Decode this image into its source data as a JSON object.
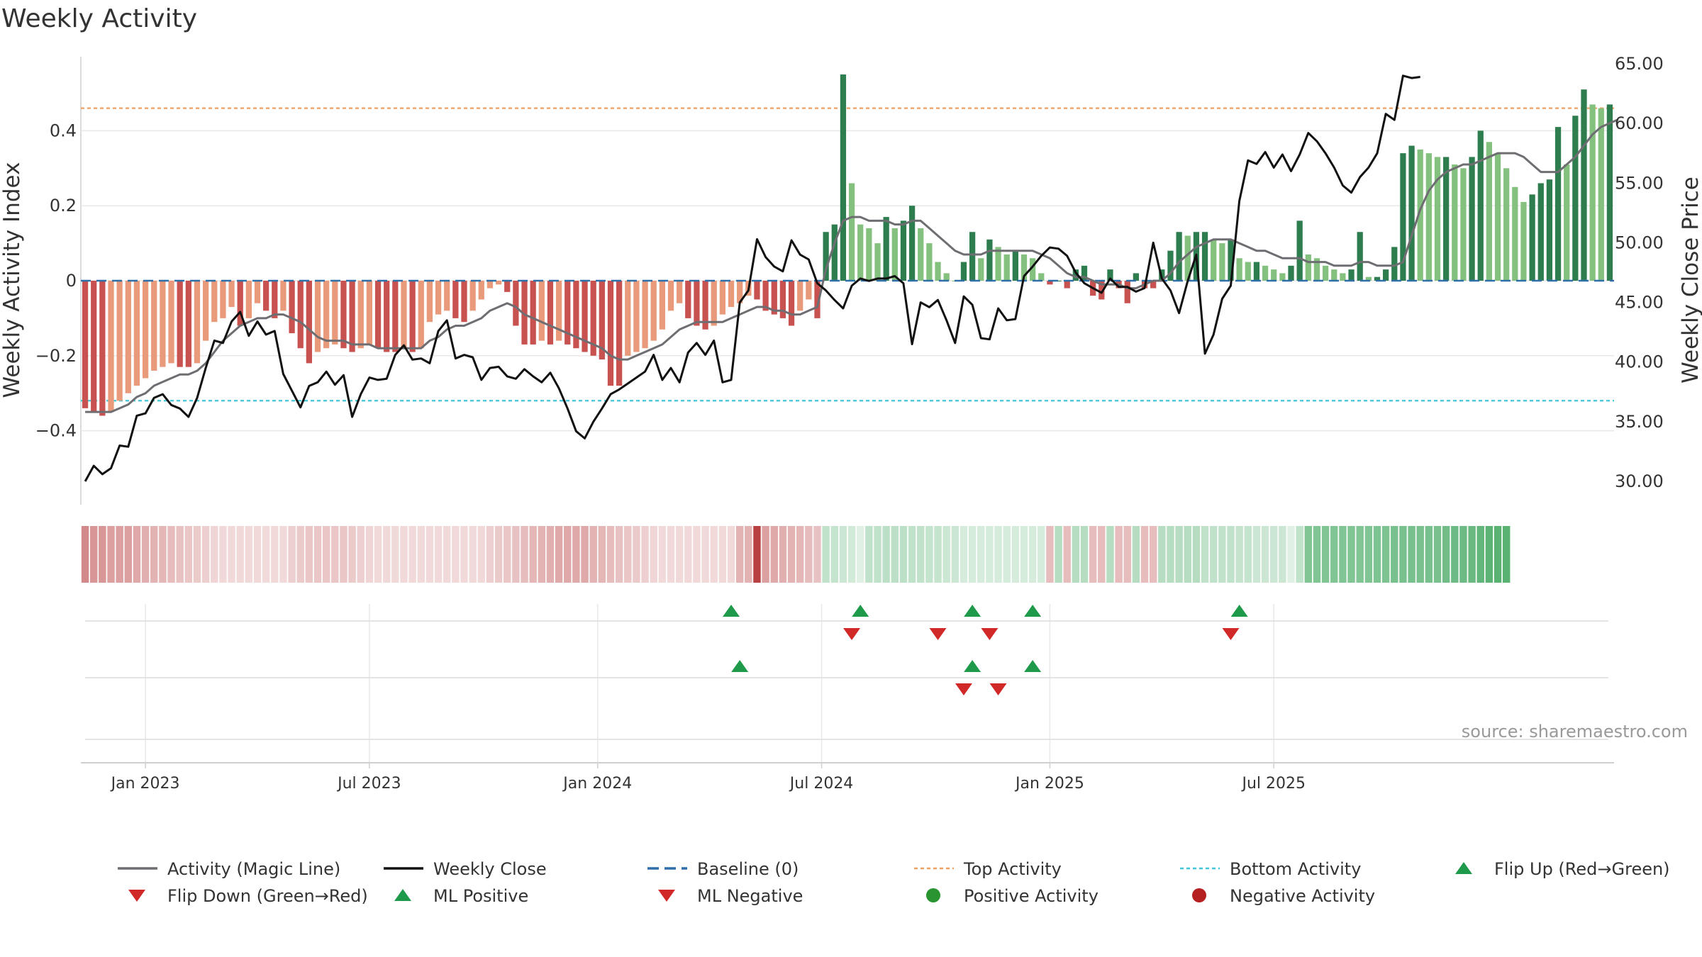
{
  "chart_data": {
    "type": "bar",
    "title": "Weekly Activity",
    "ylabel_left": "Weekly Activity Index",
    "ylabel_right": "Weekly Close Price",
    "source": "source: sharemaestro.com",
    "left_ticks": [
      {
        "value": 0.4,
        "label": "0.4"
      },
      {
        "value": 0.2,
        "label": "0.2"
      },
      {
        "value": 0,
        "label": "0"
      },
      {
        "value": -0.2,
        "label": "−0.2"
      },
      {
        "value": -0.4,
        "label": "−0.4"
      }
    ],
    "right_ticks": [
      {
        "value": 65,
        "label": "65.00"
      },
      {
        "value": 60,
        "label": "60.00"
      },
      {
        "value": 55,
        "label": "55.00"
      },
      {
        "value": 50,
        "label": "50.00"
      },
      {
        "value": 45,
        "label": "45.00"
      },
      {
        "value": 40,
        "label": "40.00"
      },
      {
        "value": 35,
        "label": "35.00"
      },
      {
        "value": 30,
        "label": "30.00"
      }
    ],
    "x_ticks": [
      {
        "week": 7,
        "label": "Jan 2023"
      },
      {
        "week": 33,
        "label": "Jul 2023"
      },
      {
        "week": 59.5,
        "label": "Jan 2024"
      },
      {
        "week": 85.5,
        "label": "Jul 2024"
      },
      {
        "week": 112,
        "label": "Jan 2025"
      },
      {
        "week": 138,
        "label": "Jul 2025"
      }
    ],
    "top_activity": 0.46,
    "bottom_activity": -0.32,
    "activity": [
      -0.34,
      -0.35,
      -0.36,
      -0.35,
      -0.32,
      -0.3,
      -0.28,
      -0.26,
      -0.24,
      -0.23,
      -0.22,
      -0.23,
      -0.23,
      -0.22,
      -0.16,
      -0.11,
      -0.1,
      -0.07,
      -0.12,
      -0.1,
      -0.06,
      -0.08,
      -0.1,
      -0.08,
      -0.14,
      -0.18,
      -0.22,
      -0.19,
      -0.18,
      -0.17,
      -0.18,
      -0.19,
      -0.18,
      -0.17,
      -0.18,
      -0.19,
      -0.19,
      -0.18,
      -0.19,
      -0.18,
      -0.11,
      -0.09,
      -0.08,
      -0.1,
      -0.11,
      -0.08,
      -0.05,
      -0.02,
      -0.01,
      -0.03,
      -0.12,
      -0.17,
      -0.17,
      -0.16,
      -0.17,
      -0.16,
      -0.17,
      -0.18,
      -0.19,
      -0.2,
      -0.21,
      -0.28,
      -0.28,
      -0.2,
      -0.19,
      -0.18,
      -0.16,
      -0.13,
      -0.08,
      -0.06,
      -0.1,
      -0.12,
      -0.13,
      -0.12,
      -0.09,
      -0.07,
      -0.06,
      -0.04,
      -0.05,
      -0.08,
      -0.09,
      -0.1,
      -0.12,
      -0.08,
      -0.05,
      -0.1,
      0.13,
      0.15,
      0.55,
      0.26,
      0.15,
      0.14,
      0.1,
      0.17,
      0.14,
      0.16,
      0.2,
      0.14,
      0.1,
      0.05,
      0.02,
      0.0,
      0.05,
      0.13,
      0.06,
      0.11,
      0.09,
      0.07,
      0.08,
      0.07,
      0.06,
      0.02,
      -0.01,
      0.0,
      -0.02,
      0.03,
      0.04,
      -0.04,
      -0.05,
      0.03,
      -0.02,
      -0.06,
      0.02,
      -0.02,
      -0.02,
      0.03,
      0.08,
      0.13,
      0.12,
      0.13,
      0.13,
      0.11,
      0.1,
      0.11,
      0.06,
      0.05,
      0.05,
      0.04,
      0.03,
      0.02,
      0.04,
      0.16,
      0.07,
      0.06,
      0.04,
      0.03,
      0.02,
      0.03,
      0.13,
      0.01,
      0.01,
      0.03,
      0.09,
      0.34,
      0.36,
      0.35,
      0.34,
      0.33,
      0.33,
      0.31,
      0.3,
      0.33,
      0.4,
      0.37,
      0.34,
      0.3,
      0.25,
      0.21,
      0.23,
      0.26,
      0.27,
      0.41,
      0.31,
      0.44,
      0.51,
      0.47,
      0.46,
      0.47
    ],
    "magic_line": [
      -0.35,
      -0.35,
      -0.35,
      -0.35,
      -0.34,
      -0.33,
      -0.31,
      -0.3,
      -0.28,
      -0.27,
      -0.26,
      -0.25,
      -0.25,
      -0.24,
      -0.22,
      -0.19,
      -0.16,
      -0.14,
      -0.12,
      -0.11,
      -0.1,
      -0.1,
      -0.09,
      -0.09,
      -0.1,
      -0.11,
      -0.13,
      -0.15,
      -0.16,
      -0.16,
      -0.16,
      -0.17,
      -0.17,
      -0.17,
      -0.18,
      -0.18,
      -0.18,
      -0.18,
      -0.18,
      -0.18,
      -0.16,
      -0.15,
      -0.13,
      -0.12,
      -0.12,
      -0.11,
      -0.1,
      -0.08,
      -0.07,
      -0.06,
      -0.07,
      -0.09,
      -0.1,
      -0.11,
      -0.12,
      -0.13,
      -0.14,
      -0.15,
      -0.16,
      -0.17,
      -0.18,
      -0.2,
      -0.21,
      -0.21,
      -0.2,
      -0.19,
      -0.18,
      -0.17,
      -0.15,
      -0.13,
      -0.12,
      -0.11,
      -0.11,
      -0.11,
      -0.11,
      -0.1,
      -0.09,
      -0.08,
      -0.07,
      -0.07,
      -0.08,
      -0.08,
      -0.09,
      -0.09,
      -0.08,
      -0.07,
      0.03,
      0.1,
      0.16,
      0.17,
      0.17,
      0.16,
      0.16,
      0.16,
      0.15,
      0.15,
      0.16,
      0.16,
      0.14,
      0.12,
      0.1,
      0.08,
      0.07,
      0.07,
      0.07,
      0.08,
      0.08,
      0.08,
      0.08,
      0.08,
      0.08,
      0.07,
      0.06,
      0.04,
      0.02,
      0.01,
      0.01,
      0.0,
      -0.01,
      -0.01,
      -0.01,
      -0.02,
      -0.02,
      -0.01,
      0.0,
      0.0,
      0.02,
      0.05,
      0.07,
      0.09,
      0.1,
      0.11,
      0.11,
      0.11,
      0.1,
      0.09,
      0.08,
      0.08,
      0.07,
      0.06,
      0.06,
      0.06,
      0.05,
      0.05,
      0.05,
      0.04,
      0.04,
      0.04,
      0.05,
      0.05,
      0.04,
      0.04,
      0.04,
      0.05,
      0.12,
      0.19,
      0.24,
      0.27,
      0.29,
      0.3,
      0.31,
      0.31,
      0.32,
      0.33,
      0.34,
      0.34,
      0.34,
      0.33,
      0.31,
      0.29,
      0.29,
      0.29,
      0.31,
      0.33,
      0.36,
      0.39,
      0.41,
      0.42,
      0.43
    ],
    "close": [
      30.0,
      31.3,
      30.6,
      31.1,
      33.0,
      32.9,
      35.5,
      35.7,
      37.0,
      37.3,
      36.4,
      36.1,
      35.4,
      37.0,
      39.5,
      41.8,
      41.6,
      43.4,
      44.2,
      42.2,
      43.4,
      42.3,
      42.6,
      39.0,
      37.6,
      36.2,
      38.0,
      38.3,
      39.2,
      38.1,
      38.9,
      35.4,
      37.3,
      38.7,
      38.5,
      38.6,
      40.6,
      41.4,
      40.2,
      40.3,
      39.9,
      42.6,
      43.5,
      40.3,
      40.6,
      40.4,
      38.5,
      39.5,
      39.6,
      38.8,
      38.6,
      39.4,
      38.8,
      38.3,
      39.1,
      37.8,
      36.1,
      34.2,
      33.6,
      35.0,
      36.1,
      37.3,
      37.7,
      38.2,
      38.7,
      39.2,
      40.6,
      38.5,
      39.5,
      38.3,
      40.8,
      41.6,
      40.6,
      41.8,
      38.3,
      38.5,
      45.0,
      46.0,
      50.3,
      48.8,
      48.0,
      47.6,
      50.2,
      49.0,
      48.6,
      46.6,
      46.0,
      45.2,
      44.5,
      46.4,
      47.0,
      46.8,
      47.0,
      47.0,
      47.2,
      46.6,
      41.5,
      45.0,
      44.6,
      45.2,
      43.5,
      41.6,
      45.5,
      44.8,
      42.0,
      41.9,
      44.5,
      43.5,
      43.6,
      47.2,
      48.0,
      48.9,
      49.6,
      49.5,
      48.9,
      47.5,
      46.6,
      46.2,
      45.8,
      47.0,
      46.3,
      46.3,
      45.9,
      46.2,
      50.0,
      47.0,
      46.0,
      44.1,
      46.8,
      49.0,
      40.7,
      42.3,
      45.3,
      46.4,
      53.5,
      56.9,
      56.6,
      57.6,
      56.3,
      57.4,
      56.0,
      57.4,
      59.2,
      58.5,
      57.5,
      56.3,
      54.8,
      54.2,
      55.5,
      56.3,
      57.5,
      60.8,
      60.3,
      64.0,
      63.8,
      63.9
    ],
    "heat": [
      0.62,
      0.55,
      0.55,
      0.5,
      0.5,
      0.5,
      0.45,
      0.42,
      0.4,
      0.38,
      0.35,
      0.32,
      0.3,
      0.28,
      0.25,
      0.22,
      0.2,
      0.2,
      0.2,
      0.2,
      0.2,
      0.2,
      0.2,
      0.2,
      0.25,
      0.28,
      0.3,
      0.3,
      0.3,
      0.3,
      0.3,
      0.28,
      0.25,
      0.22,
      0.2,
      0.2,
      0.2,
      0.2,
      0.2,
      0.2,
      0.2,
      0.2,
      0.2,
      0.2,
      0.2,
      0.2,
      0.2,
      0.25,
      0.28,
      0.3,
      0.32,
      0.35,
      0.38,
      0.4,
      0.42,
      0.45,
      0.45,
      0.45,
      0.45,
      0.4,
      0.38,
      0.35,
      0.32,
      0.3,
      0.28,
      0.25,
      0.22,
      0.2,
      0.2,
      0.2,
      0.2,
      0.2,
      0.2,
      0.2,
      0.2,
      0.2,
      0.4,
      0.4,
      1.0,
      0.5,
      0.45,
      0.42,
      0.4,
      0.38,
      0.35,
      0.32,
      0.3,
      0.28,
      0.25,
      0.22,
      0.15,
      0.3,
      0.3,
      0.32,
      0.32,
      0.32,
      0.3,
      0.3,
      0.28,
      0.28,
      0.25,
      0.25,
      0.2,
      0.2,
      0.2,
      0.2,
      0.2,
      0.2,
      0.2,
      0.2,
      0.2,
      0.2,
      0.35,
      0.35,
      0.35,
      0.35,
      0.35,
      0.35,
      0.35,
      0.35,
      0.35,
      0.35,
      0.35,
      0.35,
      0.35,
      0.35,
      0.35,
      0.35,
      0.35,
      0.35,
      0.3,
      0.3,
      0.3,
      0.3,
      0.28,
      0.28,
      0.25,
      0.25,
      0.25,
      0.25,
      0.15,
      0.3,
      0.6,
      0.6,
      0.6,
      0.6,
      0.6,
      0.6,
      0.6,
      0.6,
      0.62,
      0.62,
      0.65,
      0.65,
      0.65,
      0.65,
      0.65,
      0.65,
      0.68,
      0.7,
      0.7,
      0.72,
      0.75,
      0.78,
      0.8,
      0.8
    ],
    "flip_up": [
      75,
      90,
      103,
      110,
      134
    ],
    "flip_down": [
      89,
      99,
      105,
      133
    ],
    "ml_positive": [
      76,
      103,
      110
    ],
    "ml_negative": [
      102,
      106
    ],
    "colors": {
      "positive_dark": "#2e7d4f",
      "positive_light": "#85c17e",
      "negative_dark": "#c85250",
      "negative_light": "#e99a7a",
      "magic_line": "#6e6e72",
      "close_line": "#111111",
      "baseline": "#2e6fa8",
      "top_activity": "#eea060",
      "bottom_activity": "#40c8d8",
      "flip_up": "#1e9a4a",
      "flip_down": "#d12828",
      "positive_dot": "#2a9430",
      "negative_dot": "#b52020",
      "grid": "#e8e8e8",
      "axis": "#cfcfcf"
    },
    "legend": [
      {
        "label": "Activity (Magic Line)",
        "icon": "line"
      },
      {
        "label": "Weekly Close",
        "icon": "line"
      },
      {
        "label": "Baseline (0)",
        "icon": "dashed-line"
      },
      {
        "label": "Top Activity",
        "icon": "dotted-line"
      },
      {
        "label": "Bottom Activity",
        "icon": "dotted-line"
      },
      {
        "label": "Flip Up (Red→Green)",
        "icon": "triangle-up"
      },
      {
        "label": "Flip Down (Green→Red)",
        "icon": "triangle-down"
      },
      {
        "label": "ML Positive",
        "icon": "triangle-up"
      },
      {
        "label": "ML Negative",
        "icon": "triangle-down"
      },
      {
        "label": "Positive Activity",
        "icon": "circle"
      },
      {
        "label": "Negative Activity",
        "icon": "circle"
      }
    ]
  }
}
